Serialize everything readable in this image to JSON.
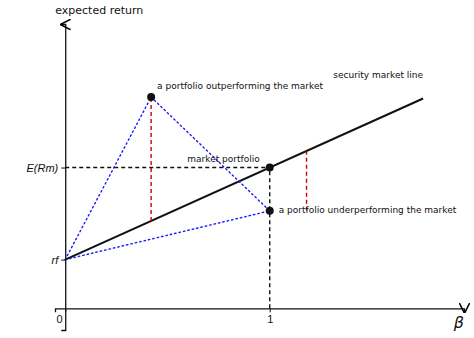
{
  "chart_data": {
    "type": "line",
    "xlabel": "β",
    "ylabel": "expected return",
    "xlim": [
      -0.05,
      1.95
    ],
    "ylim": [
      -0.08,
      1.05
    ],
    "xticks": [
      0,
      1
    ],
    "yticks": [
      {
        "value": 0.18,
        "label": "rf"
      },
      {
        "value": 0.52,
        "label": "E(Rm)"
      }
    ],
    "grid": false,
    "series": [
      {
        "x": [
          0,
          1.75
        ],
        "values": [
          0.18,
          0.775
        ],
        "color": "#111111",
        "line_style": "solid"
      },
      {
        "x": [
          0,
          0.42
        ],
        "values": [
          0.18,
          0.78
        ],
        "color": "#1a1aff",
        "line_style": "dotted"
      },
      {
        "x": [
          0,
          1.0
        ],
        "values": [
          0.18,
          0.36
        ],
        "color": "#1a1aff",
        "line_style": "dotted"
      },
      {
        "x": [
          0.42,
          1.0
        ],
        "values": [
          0.78,
          0.36
        ],
        "color": "#1a1aff",
        "line_style": "dotted"
      },
      {
        "x": [
          0.42,
          0.42
        ],
        "values": [
          0.3228,
          0.78
        ],
        "color": "#cc0000",
        "line_style": "dashed"
      },
      {
        "x": [
          1.18,
          1.18
        ],
        "values": [
          0.36,
          0.5812
        ],
        "color": "#cc0000",
        "line_style": "dashed"
      },
      {
        "x": [
          1.0,
          1.0
        ],
        "values": [
          0,
          0.52
        ],
        "color": "#111111",
        "line_style": "dashed"
      },
      {
        "x": [
          0,
          1.0
        ],
        "values": [
          0.52,
          0.52
        ],
        "color": "#111111",
        "line_style": "dashed"
      },
      {
        "type": "scatter",
        "x": [
          1.0,
          0.42,
          1.0
        ],
        "values": [
          0.52,
          0.78,
          0.36
        ],
        "color": "#111111",
        "marker": "circle"
      }
    ],
    "annotations": [
      {
        "text": "security market line",
        "x": 1.75,
        "y": 0.775
      },
      {
        "text": "a portfolio outperforming the market",
        "x": 0.42,
        "y": 0.78
      },
      {
        "text": "market portfolio",
        "x": 1.0,
        "y": 0.52
      },
      {
        "text": "a portfolio underperforming the market",
        "x": 1.0,
        "y": 0.36
      }
    ]
  }
}
